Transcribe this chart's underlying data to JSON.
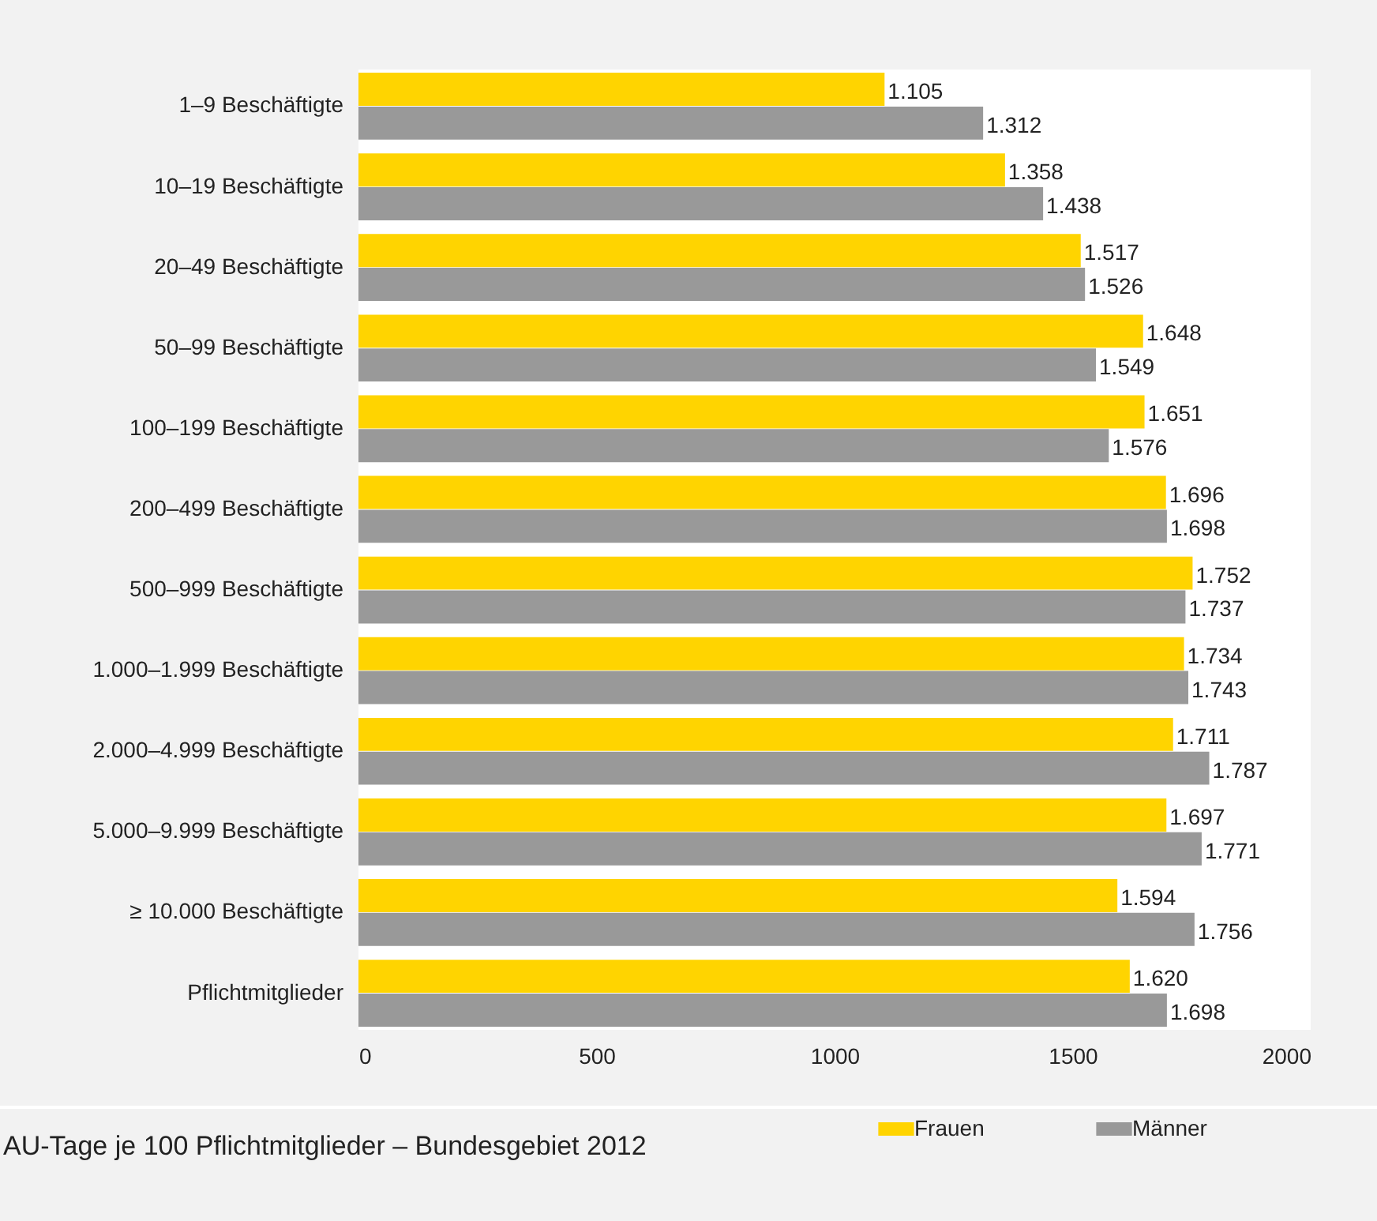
{
  "chart_data": {
    "type": "bar",
    "orientation": "horizontal",
    "categories": [
      "1–9 Beschäftigte",
      "10–19 Beschäftigte",
      "20–49 Beschäftigte",
      "50–99 Beschäftigte",
      "100–199 Beschäftigte",
      "200–499 Beschäftigte",
      "500–999 Beschäftigte",
      "1.000–1.999 Beschäftigte",
      "2.000–4.999 Beschäftigte",
      "5.000–9.999 Beschäftigte",
      "≥ 10.000 Beschäftigte",
      "Pflichtmitglieder"
    ],
    "series": [
      {
        "name": "Frauen",
        "color": "#ffd400",
        "values": [
          1105,
          1358,
          1517,
          1648,
          1651,
          1696,
          1752,
          1734,
          1711,
          1697,
          1594,
          1620
        ],
        "value_labels": [
          "1.105",
          "1.358",
          "1.517",
          "1.648",
          "1.651",
          "1.696",
          "1.752",
          "1.734",
          "1.711",
          "1.697",
          "1.594",
          "1.620"
        ]
      },
      {
        "name": "Männer",
        "color": "#999999",
        "values": [
          1312,
          1438,
          1526,
          1549,
          1576,
          1698,
          1737,
          1743,
          1787,
          1771,
          1756,
          1698
        ],
        "value_labels": [
          "1.312",
          "1.438",
          "1.526",
          "1.549",
          "1.576",
          "1.698",
          "1.737",
          "1.743",
          "1.787",
          "1.771",
          "1.756",
          "1.698"
        ]
      }
    ],
    "xlim": [
      0,
      2000
    ],
    "xticks": [
      0,
      500,
      1000,
      1500,
      2000
    ],
    "grid": false,
    "legend": "bottom right",
    "annotations": [
      "AU-Tage je 100 Pflichtmitglieder – Bundesgebiet 2012"
    ]
  }
}
